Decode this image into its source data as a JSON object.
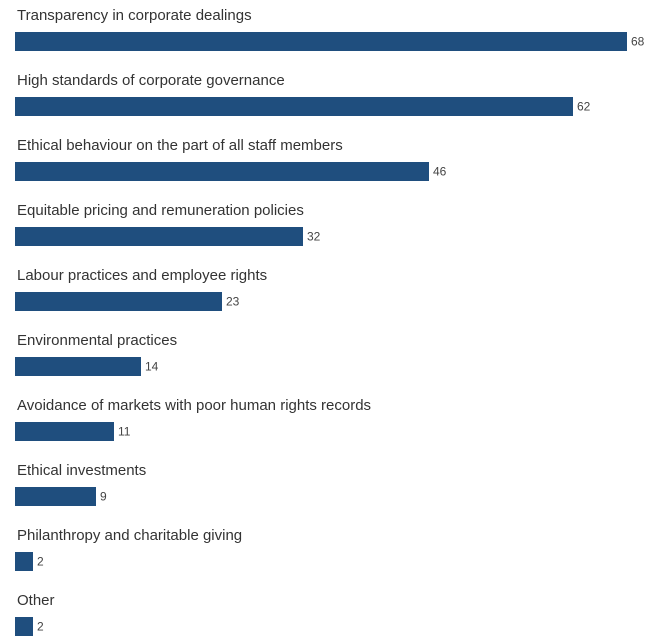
{
  "chart_data": {
    "type": "bar",
    "orientation": "horizontal",
    "categories": [
      "Transparency in corporate dealings",
      "High standards of corporate governance",
      "Ethical behaviour on the part of all staff members",
      "Equitable pricing and remuneration policies",
      "Labour practices and employee rights",
      "Environmental practices",
      "Avoidance of markets with poor human rights records",
      "Ethical investments",
      "Philanthropy and charitable giving",
      "Other"
    ],
    "values": [
      68,
      62,
      46,
      32,
      23,
      14,
      11,
      9,
      2,
      2
    ],
    "value_labels": [
      "68",
      "62",
      "46",
      "32",
      "23",
      "14",
      "11",
      "9",
      "2",
      "2"
    ],
    "bar_color": "#1f4e7e",
    "xlim": [
      0,
      68
    ],
    "grid": false,
    "legend": "none"
  }
}
